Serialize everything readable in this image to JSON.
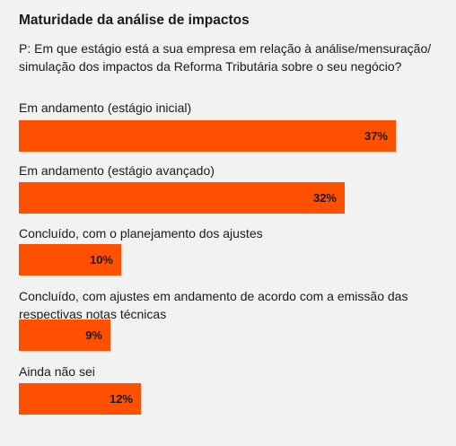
{
  "chart_data": {
    "type": "bar",
    "orientation": "horizontal",
    "title": "Maturidade da análise de impactos",
    "subtitle": "P: Em que estágio está a sua empresa em relação à análise/mensuração/ simulação dos impactos da Reforma Tributária sobre o seu negócio?",
    "categories": [
      "Em andamento (estágio inicial)",
      "Em andamento (estágio avançado)",
      "Concluído, com o planejamento dos ajustes",
      "Concluído, com ajustes em andamento de acordo com a emissão das respectivas notas técnicas",
      "Ainda não sei"
    ],
    "values": [
      37,
      32,
      10,
      9,
      12
    ],
    "value_labels": [
      "37%",
      "32%",
      "10%",
      "9%",
      "12%"
    ],
    "unit": "%",
    "xlim": [
      0,
      37
    ],
    "grid": false,
    "legend": "none",
    "bar_color": "#fe5000"
  }
}
